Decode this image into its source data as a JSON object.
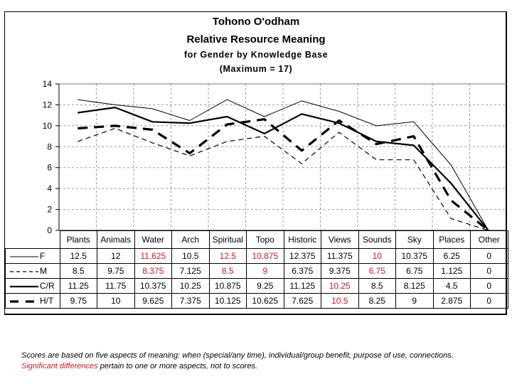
{
  "chart_data": {
    "type": "line",
    "title": "Tohono O'odham",
    "subtitle": "Relative Resource Meaning",
    "subtitle2": "for Gender by Knowledge Base",
    "subtitle3": "(Maximum = 17)",
    "xlabel": "",
    "ylabel": "",
    "ylim": [
      0,
      14
    ],
    "yticks": [
      0,
      2,
      4,
      6,
      8,
      10,
      12,
      14
    ],
    "grid": true,
    "legend_placement": "data-table-left",
    "categories": [
      "Plants",
      "Animals",
      "Water",
      "Arch",
      "Spiritual",
      "Topo",
      "Historic",
      "Views",
      "Sounds",
      "Sky",
      "Places",
      "Other"
    ],
    "series": [
      {
        "name": "F",
        "style": "thin-solid",
        "values": [
          12.5,
          12,
          11.625,
          10.5,
          12.5,
          10.875,
          12.375,
          11.375,
          10,
          10.375,
          6.25,
          0
        ]
      },
      {
        "name": "M",
        "style": "thin-dashed",
        "values": [
          8.5,
          9.75,
          8.375,
          7.125,
          8.5,
          9,
          6.375,
          9.375,
          6.75,
          6.75,
          1.125,
          0
        ]
      },
      {
        "name": "C/R",
        "style": "thick-solid",
        "values": [
          11.25,
          11.75,
          10.375,
          10.25,
          10.875,
          9.25,
          11.125,
          10.25,
          8.5,
          8.125,
          4.5,
          0
        ]
      },
      {
        "name": "H/T",
        "style": "thick-dashed",
        "values": [
          9.75,
          10,
          9.625,
          7.375,
          10.125,
          10.625,
          7.625,
          10.5,
          8.25,
          9,
          2.875,
          0
        ]
      }
    ],
    "table_labels": {
      "F": [
        "12.5",
        "12",
        "11.625",
        "10.5",
        "12.5",
        "10.875",
        "12.375",
        "11.375",
        "10",
        "10.375",
        "6.25",
        "0"
      ],
      "M": [
        "8.5",
        "9.75",
        "8.375",
        "7.125",
        "8.5",
        "9",
        "6.375",
        "9.375",
        "6.75",
        "6.75",
        "1.125",
        "0"
      ],
      "C/R": [
        "11.25",
        "11.75",
        "10.375",
        "10.25",
        "10.875",
        "9.25",
        "11.125",
        "10.25",
        "8.5",
        "8.125",
        "4.5",
        "0"
      ],
      "H/T": [
        "9.75",
        "10",
        "9.625",
        "7.375",
        "10.125",
        "10.625",
        "7.625",
        "10.5",
        "8.25",
        "9",
        "2.875",
        "0"
      ]
    },
    "significant_cells": {
      "F": [
        "Water",
        "Spiritual",
        "Topo",
        "Sounds"
      ],
      "M": [
        "Water",
        "Spiritual",
        "Topo",
        "Sounds"
      ],
      "C/R": [
        "Views"
      ],
      "H/T": [
        "Views"
      ]
    },
    "colors": {
      "line": "#000000",
      "grid": "#999999",
      "significant": "#c0202a"
    }
  },
  "notes": {
    "line1": "Scores are based on five aspects of meaning: when (special/any time), individual/group benefit, purpose of use, connections.",
    "line2_highlight": "Significant differences",
    "line2_rest": " pertain to one or more aspects, not to scores."
  }
}
